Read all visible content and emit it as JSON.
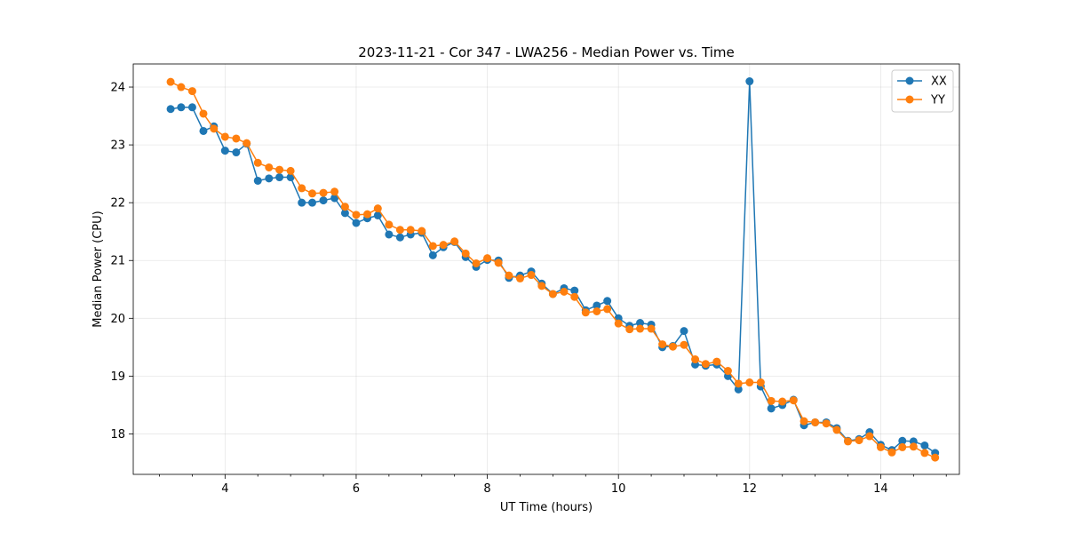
{
  "chart_data": {
    "type": "line",
    "title": "2023-11-21 - Cor 347 - LWA256 - Median Power vs. Time",
    "xlabel": "UT Time (hours)",
    "ylabel": "Median Power (CPU)",
    "xlim": [
      2.6,
      15.2
    ],
    "ylim": [
      17.3,
      24.4
    ],
    "xticks": [
      4,
      6,
      8,
      10,
      12,
      14
    ],
    "xticks_minor": [
      3.0,
      3.5,
      4.5,
      5.0,
      5.5,
      6.5,
      7.0,
      7.5,
      8.5,
      9.0,
      9.5,
      10.5,
      11.0,
      11.5,
      12.5,
      13.0,
      13.5,
      14.5,
      15.0
    ],
    "yticks": [
      18,
      19,
      20,
      21,
      22,
      23,
      24
    ],
    "grid": true,
    "legend_position": "top-right",
    "x": [
      3.17,
      3.33,
      3.5,
      3.67,
      3.83,
      4.0,
      4.17,
      4.33,
      4.5,
      4.67,
      4.83,
      5.0,
      5.17,
      5.33,
      5.5,
      5.67,
      5.83,
      6.0,
      6.17,
      6.33,
      6.5,
      6.67,
      6.83,
      7.0,
      7.17,
      7.33,
      7.5,
      7.67,
      7.83,
      8.0,
      8.17,
      8.33,
      8.5,
      8.67,
      8.83,
      9.0,
      9.17,
      9.33,
      9.5,
      9.67,
      9.83,
      10.0,
      10.17,
      10.33,
      10.5,
      10.67,
      10.83,
      11.0,
      11.17,
      11.33,
      11.5,
      11.67,
      11.83,
      12.0,
      12.17,
      12.33,
      12.5,
      12.67,
      12.83,
      13.0,
      13.17,
      13.33,
      13.5,
      13.67,
      13.83,
      14.0,
      14.17,
      14.33,
      14.5,
      14.67,
      14.83
    ],
    "series": [
      {
        "name": "XX",
        "color": "#1f77b4",
        "values": [
          23.62,
          23.65,
          23.65,
          23.24,
          23.32,
          22.9,
          22.87,
          23.02,
          22.38,
          22.42,
          22.44,
          22.44,
          22.0,
          22.0,
          22.04,
          22.08,
          21.82,
          21.65,
          21.73,
          21.78,
          21.45,
          21.4,
          21.45,
          21.48,
          21.09,
          21.23,
          21.32,
          21.06,
          20.89,
          21.01,
          21.0,
          20.7,
          20.74,
          20.81,
          20.6,
          20.42,
          20.52,
          20.48,
          20.14,
          20.22,
          20.3,
          20.0,
          19.87,
          19.92,
          19.89,
          19.5,
          19.52,
          19.78,
          19.2,
          19.18,
          19.2,
          19.0,
          18.77,
          24.1,
          18.82,
          18.44,
          18.5,
          18.59,
          18.15,
          18.2,
          18.2,
          18.1,
          17.88,
          17.91,
          18.03,
          17.81,
          17.72,
          17.88,
          17.87,
          17.8,
          17.67
        ]
      },
      {
        "name": "YY",
        "color": "#ff7f0e",
        "values": [
          24.09,
          24.0,
          23.93,
          23.54,
          23.28,
          23.14,
          23.11,
          23.03,
          22.69,
          22.61,
          22.57,
          22.55,
          22.25,
          22.16,
          22.17,
          22.19,
          21.93,
          21.79,
          21.8,
          21.9,
          21.62,
          21.53,
          21.53,
          21.51,
          21.25,
          21.27,
          21.33,
          21.12,
          20.95,
          21.04,
          20.96,
          20.74,
          20.69,
          20.75,
          20.56,
          20.42,
          20.46,
          20.37,
          20.1,
          20.12,
          20.16,
          19.91,
          19.81,
          19.82,
          19.82,
          19.55,
          19.51,
          19.54,
          19.29,
          19.21,
          19.25,
          19.09,
          18.87,
          18.89,
          18.89,
          18.57,
          18.56,
          18.58,
          18.22,
          18.2,
          18.18,
          18.07,
          17.87,
          17.89,
          17.96,
          17.77,
          17.68,
          17.77,
          17.78,
          17.67,
          17.59
        ]
      }
    ]
  }
}
